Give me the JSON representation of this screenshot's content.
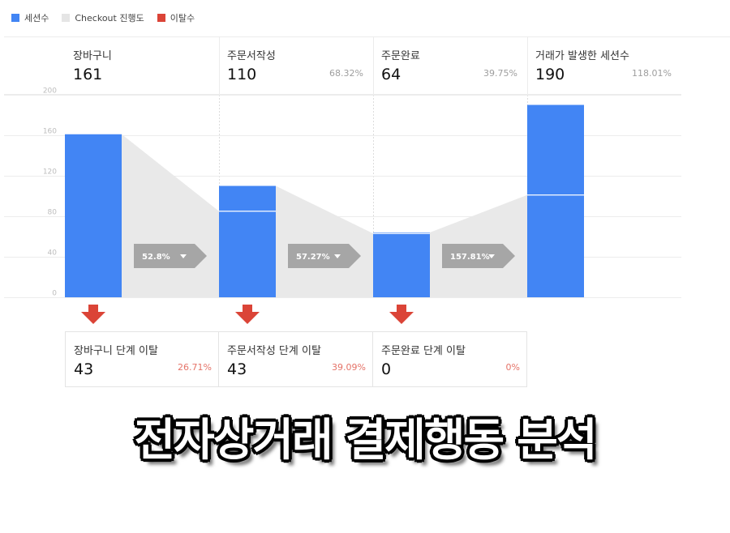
{
  "legend": [
    {
      "label": "세션수",
      "color": "#4285f4"
    },
    {
      "label": "Checkout 진행도",
      "color": "#e5e5e5"
    },
    {
      "label": "이탈수",
      "color": "#db4437"
    }
  ],
  "steps": [
    {
      "name": "장바구니",
      "value": "161",
      "pct": ""
    },
    {
      "name": "주문서작성",
      "value": "110",
      "pct": "68.32%"
    },
    {
      "name": "주문완료",
      "value": "64",
      "pct": "39.75%"
    },
    {
      "name": "거래가 발생한 세션수",
      "value": "190",
      "pct": "118.01%"
    }
  ],
  "dropoffs": [
    {
      "name": "장바구니 단계 이탈",
      "value": "43",
      "pct": "26.71%"
    },
    {
      "name": "주문서작성 단계 이탈",
      "value": "43",
      "pct": "39.09%"
    },
    {
      "name": "주문완료 단계 이탈",
      "value": "0",
      "pct": "0%"
    }
  ],
  "conversion_labels": [
    "52.8%",
    "57.27%",
    "157.81%"
  ],
  "chart_data": {
    "type": "bar",
    "categories": [
      "장바구니",
      "주문서작성",
      "주문완료",
      "거래가 발생한 세션수"
    ],
    "values": [
      161,
      110,
      64,
      190
    ],
    "divider_values": [
      null,
      85,
      63,
      101
    ],
    "ylim": [
      0,
      200
    ],
    "yticks": [
      "0",
      "40",
      "80",
      "120",
      "160",
      "200"
    ],
    "colors": {
      "bar": "#4285f4",
      "progress": "#e9e9e9",
      "drop": "#db4437",
      "chevron": "#a6a6a6"
    }
  },
  "title": "전자상거래 결제행동 분석"
}
